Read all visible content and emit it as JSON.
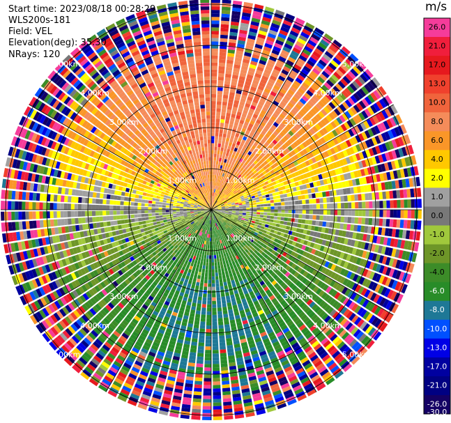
{
  "header": {
    "start_time": "Start time: 2023/08/18 00:28:29",
    "instrument": "WLS200s-181",
    "field": "Field: VEL",
    "elevation": "Elevation(deg): 35.30",
    "nrays": "NRays: 120"
  },
  "chart_data": {
    "type": "heatmap",
    "projection": "polar-ppi",
    "field": "VEL",
    "unit": "m/s",
    "n_rays": 120,
    "range_rings_km": [
      1.0,
      2.0,
      3.0,
      4.0,
      5.0
    ],
    "range_ring_labels": [
      "1.00km",
      "2.00km",
      "3.00km",
      "4.00km",
      "5.00km"
    ],
    "colorbar": {
      "label": "m/s",
      "ticks": [
        "26.0",
        "21.0",
        "17.0",
        "13.0",
        "10.0",
        "8.0",
        "6.0",
        "4.0",
        "2.0",
        "1.0",
        "0.0",
        "-1.0",
        "-2.0",
        "-4.0",
        "-6.0",
        "-8.0",
        "-10.0",
        "-13.0",
        "-17.0",
        "-21.0",
        "-26.0",
        "-30.0"
      ],
      "colors": [
        "#f53c9a",
        "#f01e3c",
        "#e6191e",
        "#f0412d",
        "#f0643c",
        "#f58c5a",
        "#fa9628",
        "#ffc800",
        "#ffff00",
        "#a0a0a0",
        "#787878",
        "#a0c83c",
        "#6e9628",
        "#3c8c28",
        "#288c28",
        "#1e7896",
        "#0050ff",
        "#0000e6",
        "#0000a0",
        "#000082",
        "#140064"
      ]
    },
    "pattern": "positive velocities (2 to 10 m/s) in north sector, negative velocities (-2 to -10 m/s) in south sector, near-zero along east-west line, noisy random values beyond about 3.5 km"
  }
}
